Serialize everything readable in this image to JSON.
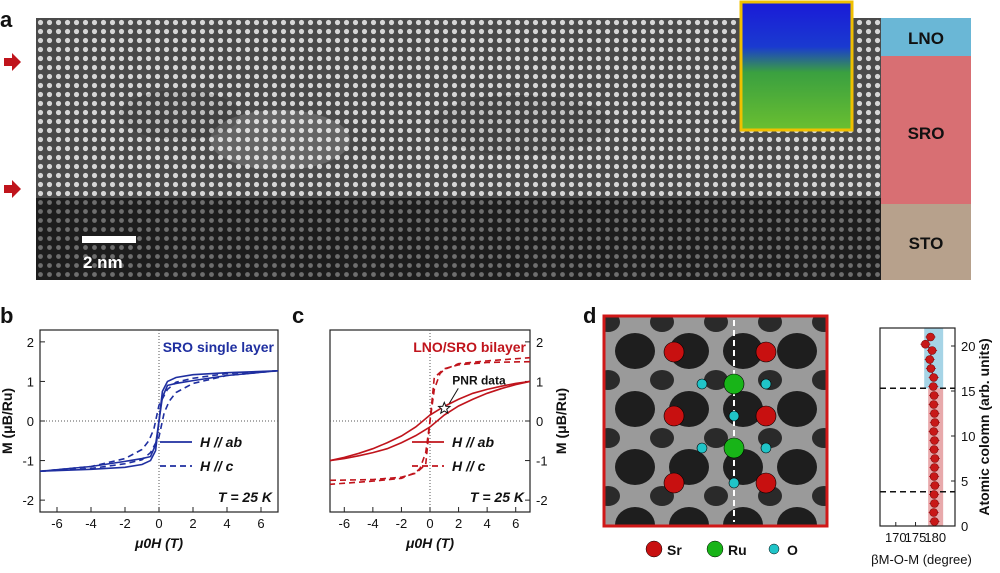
{
  "panel_labels": {
    "a": "a",
    "b": "b",
    "c": "c",
    "d": "d"
  },
  "panel_a": {
    "layers": [
      "LNO",
      "SRO",
      "STO"
    ],
    "scale_bar": "2 nm"
  },
  "colors": {
    "sro_blue": "#1f2fa0",
    "sro_red": "#c0141c",
    "lno_box": "#6ab7d6",
    "sro_box": "#d86f73",
    "sto_box": "#b7a18c",
    "arrow": "#c0141c"
  },
  "chart_data": [
    {
      "type": "line",
      "panel": "b",
      "title": "SRO single layer",
      "xlabel": "μ0H (T)",
      "ylabel": "M (μB/Ru)",
      "xlim": [
        -7,
        7
      ],
      "ylim": [
        -2.3,
        2.3
      ],
      "xticks": [
        "-6",
        "-4",
        "-2",
        "0",
        "2",
        "4",
        "6"
      ],
      "yticks": [
        "2",
        "1",
        "0",
        "-1",
        "-2"
      ],
      "annotation": "T = 25 K",
      "series": [
        {
          "name": "H // ab",
          "style": "solid",
          "x_up": [
            -7,
            -4,
            -2,
            -1,
            -0.5,
            -0.2,
            0,
            0.2,
            0.5,
            1,
            2,
            4,
            7
          ],
          "y_up": [
            -1.27,
            -1.15,
            -1.02,
            -0.95,
            -0.9,
            -0.6,
            0,
            0.75,
            1.0,
            1.1,
            1.17,
            1.22,
            1.27
          ]
        },
        {
          "name": "H // c",
          "style": "dashed",
          "x_up": [
            -7,
            -4,
            -2,
            -1,
            -0.5,
            0,
            0.3,
            0.6,
            1,
            2,
            4,
            7
          ],
          "y_up": [
            -1.27,
            -1.2,
            -1.08,
            -0.98,
            -0.8,
            -0.4,
            0.2,
            0.5,
            0.72,
            0.95,
            1.15,
            1.27
          ]
        }
      ]
    },
    {
      "type": "line",
      "panel": "c",
      "title": "LNO/SRO bilayer",
      "xlabel": "μ0H (T)",
      "ylabel": "M (μB/Ru)",
      "xlim": [
        -7,
        7
      ],
      "ylim": [
        -2.3,
        2.3
      ],
      "xticks": [
        "-6",
        "-4",
        "-2",
        "0",
        "2",
        "4",
        "6"
      ],
      "yticks": [
        "2",
        "1",
        "0",
        "-1",
        "-2"
      ],
      "annotation": "T = 25 K",
      "callout": "PNR data",
      "pnr_point": {
        "x": 1.0,
        "y": 0.32
      },
      "series": [
        {
          "name": "H // ab",
          "style": "solid",
          "x_up": [
            -7,
            -6,
            -5,
            -4,
            -3,
            -2,
            -1,
            0,
            1,
            2,
            3,
            4,
            5,
            6,
            7
          ],
          "y_up": [
            -1.0,
            -0.95,
            -0.88,
            -0.8,
            -0.7,
            -0.55,
            -0.37,
            -0.15,
            0.15,
            0.38,
            0.55,
            0.7,
            0.82,
            0.92,
            1.0
          ]
        },
        {
          "name": "H // c",
          "style": "dashed",
          "x_up": [
            -7,
            -4,
            -2,
            -1,
            -0.3,
            0,
            0.3,
            0.7,
            1,
            2,
            4,
            7
          ],
          "y_up": [
            -1.5,
            -1.48,
            -1.42,
            -1.32,
            -1.1,
            0.0,
            0.8,
            1.2,
            1.3,
            1.45,
            1.52,
            1.6
          ]
        }
      ]
    },
    {
      "type": "scatter",
      "panel": "d",
      "xlabel": "βM-O-M (degree)",
      "ylabel": "Atomic colomn (arb. units)",
      "xlim": [
        166,
        185
      ],
      "ylim": [
        0,
        22
      ],
      "xticks": [
        "170",
        "175",
        "180"
      ],
      "yticks": [
        "0",
        "5",
        "10",
        "15",
        "20"
      ],
      "dashed_lines_y": [
        3.8,
        15.3
      ],
      "x": [
        179.8,
        179.6,
        179.8,
        179.7,
        179.9,
        179.7,
        179.8,
        179.9,
        179.7,
        179.8,
        179.6,
        179.9,
        179.8,
        179.6,
        179.7,
        179.5,
        179.6,
        178.9,
        178.6,
        179.2,
        177.5,
        178.8
      ],
      "y": [
        0.5,
        1.5,
        2.5,
        3.5,
        4.5,
        5.5,
        6.5,
        7.5,
        8.5,
        9.5,
        10.5,
        11.5,
        12.5,
        13.5,
        14.5,
        15.5,
        16.5,
        17.5,
        18.5,
        19.5,
        20.2,
        21.0
      ]
    }
  ],
  "legend_d": [
    {
      "label": "Sr",
      "color": "#c81010"
    },
    {
      "label": "Ru",
      "color": "#18b418"
    },
    {
      "label": "O",
      "color": "#20c4c8"
    }
  ]
}
